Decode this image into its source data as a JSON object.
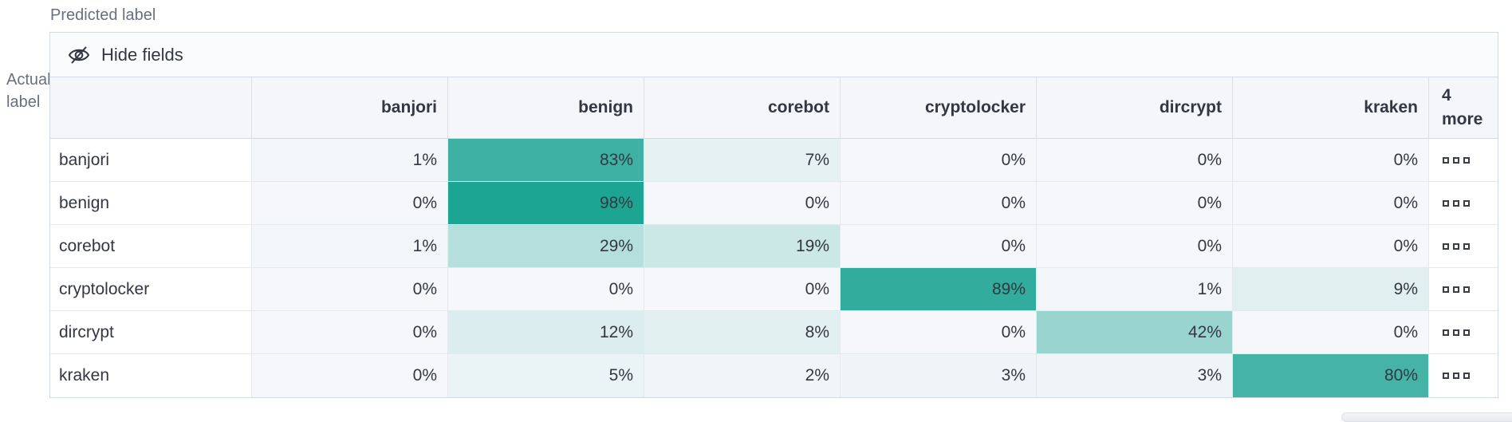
{
  "axes": {
    "predicted": "Predicted label",
    "actual_line1": "Actual",
    "actual_line2": "label"
  },
  "toolbar": {
    "hide_fields": "Hide fields"
  },
  "chart_data": {
    "type": "heatmap",
    "x_label": "Predicted label",
    "y_label": "Actual label",
    "columns": [
      "banjori",
      "benign",
      "corebot",
      "cryptolocker",
      "dircrypt",
      "kraken"
    ],
    "rows": [
      "banjori",
      "benign",
      "corebot",
      "cryptolocker",
      "dircrypt",
      "kraken"
    ],
    "values_percent": [
      [
        1,
        83,
        7,
        0,
        0,
        0
      ],
      [
        0,
        98,
        0,
        0,
        0,
        0
      ],
      [
        1,
        29,
        19,
        0,
        0,
        0
      ],
      [
        0,
        0,
        0,
        89,
        1,
        9
      ],
      [
        0,
        12,
        8,
        0,
        42,
        0
      ],
      [
        0,
        5,
        2,
        3,
        3,
        80
      ]
    ],
    "cell_value_suffix": "%",
    "hidden_columns_header": {
      "count": "4",
      "word": "more"
    },
    "heat_base_color": "#19a392",
    "zero_cell_color": "#f5f7fa",
    "legend": "none",
    "grid": "on"
  },
  "colors": {
    "text": "#343741",
    "subdued": "#69707d",
    "borderOuter": "#d3dae6",
    "borderInner": "#e3e8f1",
    "headerBg": "#f4f6fa",
    "toolbarBg": "#fafbfd"
  }
}
